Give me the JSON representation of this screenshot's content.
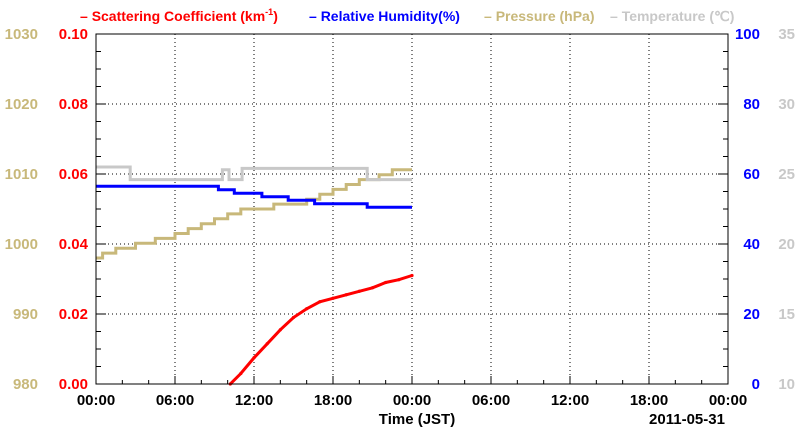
{
  "chart_data": {
    "type": "line",
    "legend": {
      "placement": "top",
      "entries": [
        {
          "dash": "–",
          "name": "Scattering Coefficient (km",
          "sup": "-1",
          "tail": ")",
          "color": "#ff0000"
        },
        {
          "dash": "–",
          "name": "Relative Humidity(%)",
          "color": "#0000ff"
        },
        {
          "dash": "–",
          "name": "Pressure (hPa)",
          "color": "#c8b87a"
        },
        {
          "dash": "–",
          "name": "Temperature (℃)",
          "color": "#c8c8c8"
        }
      ]
    },
    "xlabel": "Time (JST)",
    "date_label": "2011-05-31",
    "x_ticks": [
      "00:00",
      "06:00",
      "12:00",
      "18:00",
      "00:00",
      "06:00",
      "12:00",
      "18:00",
      "00:00"
    ],
    "xlim_hours": [
      0,
      48
    ],
    "grid": true,
    "axes": {
      "pressure": {
        "side": "left-outer",
        "ticks": [
          "980",
          "990",
          "1000",
          "1010",
          "1020",
          "1030"
        ],
        "ylim": [
          980,
          1030
        ],
        "color": "#c8b87a"
      },
      "scattering": {
        "side": "left-inner",
        "ticks": [
          "0.00",
          "0.02",
          "0.04",
          "0.06",
          "0.08",
          "0.10"
        ],
        "ylim": [
          0,
          0.1
        ],
        "color": "#ff0000"
      },
      "humidity": {
        "side": "right-inner",
        "ticks": [
          "0",
          "20",
          "40",
          "60",
          "80",
          "100"
        ],
        "ylim": [
          0,
          100
        ],
        "color": "#0000ff"
      },
      "temperature": {
        "side": "right-outer",
        "ticks": [
          "10",
          "15",
          "20",
          "25",
          "30",
          "35"
        ],
        "ylim": [
          10,
          35
        ],
        "color": "#c8c8c8"
      }
    },
    "series": [
      {
        "name": "Pressure (hPa)",
        "axis": "pressure",
        "color": "#c8b87a",
        "step": true,
        "points": [
          [
            0,
            998.0
          ],
          [
            0.5,
            998.7
          ],
          [
            1.5,
            999.4
          ],
          [
            3,
            1000.1
          ],
          [
            4.5,
            1000.8
          ],
          [
            6,
            1001.5
          ],
          [
            7,
            1002.2
          ],
          [
            8,
            1002.9
          ],
          [
            9,
            1003.6
          ],
          [
            10,
            1004.3
          ],
          [
            11,
            1005.0
          ],
          [
            12.5,
            1005.0
          ],
          [
            13.5,
            1005.7
          ],
          [
            15,
            1005.7
          ],
          [
            16,
            1006.4
          ],
          [
            17,
            1007.1
          ],
          [
            18,
            1007.8
          ],
          [
            19,
            1008.5
          ],
          [
            20,
            1009.2
          ],
          [
            21.5,
            1009.9
          ],
          [
            22.5,
            1010.6
          ],
          [
            24,
            1010.6
          ]
        ]
      },
      {
        "name": "Temperature (℃)",
        "axis": "temperature",
        "color": "#c8c8c8",
        "step": true,
        "points": [
          [
            0,
            25.5
          ],
          [
            2.5,
            25.5
          ],
          [
            2.6,
            24.6
          ],
          [
            9.5,
            24.6
          ],
          [
            9.6,
            25.3
          ],
          [
            10,
            25.3
          ],
          [
            10.1,
            24.6
          ],
          [
            11,
            24.6
          ],
          [
            11.1,
            25.4
          ],
          [
            20.5,
            25.4
          ],
          [
            20.6,
            24.6
          ],
          [
            24,
            24.6
          ]
        ]
      },
      {
        "name": "Relative Humidity(%)",
        "axis": "humidity",
        "color": "#0000ff",
        "step": true,
        "points": [
          [
            0,
            56.5
          ],
          [
            9.2,
            56.5
          ],
          [
            9.3,
            55.5
          ],
          [
            10.4,
            55.5
          ],
          [
            10.5,
            54.5
          ],
          [
            12.5,
            54.5
          ],
          [
            12.6,
            53.5
          ],
          [
            14.5,
            53.5
          ],
          [
            14.6,
            52.5
          ],
          [
            16.5,
            52.5
          ],
          [
            16.6,
            51.5
          ],
          [
            20.5,
            51.5
          ],
          [
            20.6,
            50.5
          ],
          [
            24,
            50.5
          ]
        ]
      },
      {
        "name": "Scattering Coefficient (km-1)",
        "axis": "scattering",
        "color": "#ff0000",
        "step": false,
        "points": [
          [
            10.2,
            0.0
          ],
          [
            11,
            0.003
          ],
          [
            12,
            0.0075
          ],
          [
            13,
            0.0115
          ],
          [
            14,
            0.0155
          ],
          [
            15,
            0.019
          ],
          [
            16,
            0.0215
          ],
          [
            17,
            0.0235
          ],
          [
            18,
            0.0245
          ],
          [
            19,
            0.0255
          ],
          [
            20,
            0.0265
          ],
          [
            21,
            0.0275
          ],
          [
            22,
            0.029
          ],
          [
            23,
            0.0298
          ],
          [
            24,
            0.031
          ]
        ]
      }
    ]
  }
}
